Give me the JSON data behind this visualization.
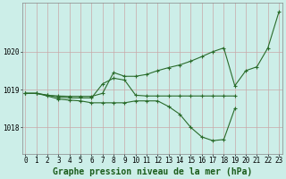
{
  "title": "Graphe pression niveau de la mer (hPa)",
  "bg_color": "#cceee8",
  "grid_color": "#c8a8a8",
  "line_color": "#2a6b2a",
  "marker": "+",
  "x_hours": [
    0,
    1,
    2,
    3,
    4,
    5,
    6,
    7,
    8,
    9,
    10,
    11,
    12,
    13,
    14,
    15,
    16,
    17,
    18,
    19,
    20,
    21,
    22,
    23
  ],
  "series_max": [
    1018.9,
    1018.9,
    1018.85,
    1018.83,
    1018.82,
    1018.82,
    1018.82,
    1018.9,
    1019.45,
    1019.35,
    1019.35,
    1019.4,
    1019.5,
    1019.58,
    1019.65,
    1019.75,
    1019.87,
    1020.0,
    1020.1,
    1019.1,
    1019.5,
    1019.6,
    1020.1,
    1021.05
  ],
  "series_mid": [
    1018.9,
    1018.9,
    1018.85,
    1018.8,
    1018.78,
    1018.78,
    1018.78,
    1019.15,
    1019.3,
    1019.25,
    1018.85,
    1018.83,
    1018.83,
    1018.83,
    1018.83,
    1018.83,
    1018.83,
    1018.83,
    1018.83,
    1018.83,
    null,
    null,
    null,
    null
  ],
  "series_min": [
    1018.9,
    1018.9,
    1018.83,
    1018.75,
    1018.72,
    1018.7,
    1018.65,
    1018.65,
    1018.65,
    1018.65,
    1018.7,
    1018.7,
    1018.7,
    1018.55,
    1018.35,
    1018.0,
    1017.75,
    1017.65,
    1017.68,
    1018.5,
    null,
    null,
    null,
    null
  ],
  "ylim": [
    1017.3,
    1021.3
  ],
  "yticks": [
    1018.0,
    1019.0,
    1020.0
  ],
  "xlim": [
    -0.3,
    23.3
  ],
  "title_fontsize": 7,
  "tick_fontsize": 5.5,
  "lw": 0.8,
  "ms": 3.0
}
